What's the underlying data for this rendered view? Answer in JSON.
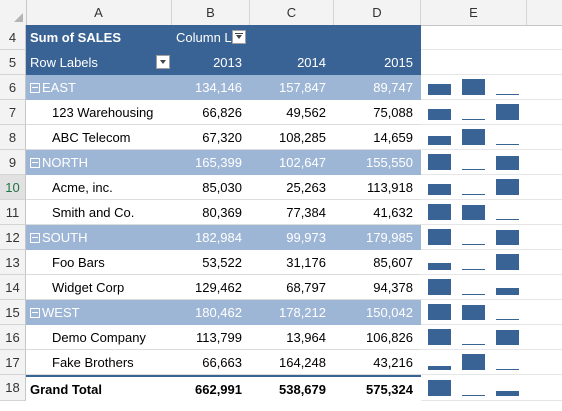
{
  "columns": [
    "A",
    "B",
    "C",
    "D",
    "E"
  ],
  "pivot": {
    "value_field": "Sum of SALES",
    "column_labels": "Column L",
    "row_labels": "Row Labels",
    "years": [
      "2013",
      "2014",
      "2015"
    ]
  },
  "rows": [
    {
      "num": "4",
      "kind": "dark-header"
    },
    {
      "num": "5",
      "kind": "year-header"
    },
    {
      "num": "6",
      "kind": "region",
      "label": "EAST",
      "v": [
        "134,146",
        "157,847",
        "89,747"
      ],
      "spark": [
        134146,
        157847,
        89747
      ]
    },
    {
      "num": "7",
      "kind": "item",
      "label": "123 Warehousing",
      "v": [
        "66,826",
        "49,562",
        "75,088"
      ],
      "spark": [
        66826,
        49562,
        75088
      ]
    },
    {
      "num": "8",
      "kind": "item",
      "label": "ABC Telecom",
      "v": [
        "67,320",
        "108,285",
        "14,659"
      ],
      "spark": [
        67320,
        108285,
        14659
      ]
    },
    {
      "num": "9",
      "kind": "region",
      "label": "NORTH",
      "v": [
        "165,399",
        "102,647",
        "155,550"
      ],
      "spark": [
        165399,
        102647,
        155550
      ]
    },
    {
      "num": "10",
      "kind": "item",
      "label": "Acme, inc.",
      "v": [
        "85,030",
        "25,263",
        "113,918"
      ],
      "spark": [
        85030,
        25263,
        113918
      ]
    },
    {
      "num": "11",
      "kind": "item",
      "label": "Smith and Co.",
      "v": [
        "80,369",
        "77,384",
        "41,632"
      ],
      "spark": [
        80369,
        77384,
        41632
      ]
    },
    {
      "num": "12",
      "kind": "region",
      "label": "SOUTH",
      "v": [
        "182,984",
        "99,973",
        "179,985"
      ],
      "spark": [
        182984,
        99973,
        179985
      ]
    },
    {
      "num": "13",
      "kind": "item",
      "label": "Foo Bars",
      "v": [
        "53,522",
        "31,176",
        "85,607"
      ],
      "spark": [
        53522,
        31176,
        85607
      ]
    },
    {
      "num": "14",
      "kind": "item",
      "label": "Widget Corp",
      "v": [
        "129,462",
        "68,797",
        "94,378"
      ],
      "spark": [
        129462,
        68797,
        94378
      ]
    },
    {
      "num": "15",
      "kind": "region",
      "label": "WEST",
      "v": [
        "180,462",
        "178,212",
        "150,042"
      ],
      "spark": [
        180462,
        178212,
        150042
      ]
    },
    {
      "num": "16",
      "kind": "item",
      "label": "Demo Company",
      "v": [
        "113,799",
        "13,964",
        "106,826"
      ],
      "spark": [
        113799,
        13964,
        106826
      ]
    },
    {
      "num": "17",
      "kind": "item",
      "label": "Fake Brothers",
      "v": [
        "66,663",
        "164,248",
        "43,216"
      ],
      "spark": [
        66663,
        164248,
        43216
      ]
    },
    {
      "num": "18",
      "kind": "total",
      "label": "Grand Total",
      "v": [
        "662,991",
        "538,679",
        "575,324"
      ],
      "spark": [
        662991,
        538679,
        575324
      ]
    }
  ],
  "selected_row": "10",
  "colors": {
    "header": "#3a6395",
    "region": "#9eb6d6",
    "spark": "#3a6395"
  }
}
